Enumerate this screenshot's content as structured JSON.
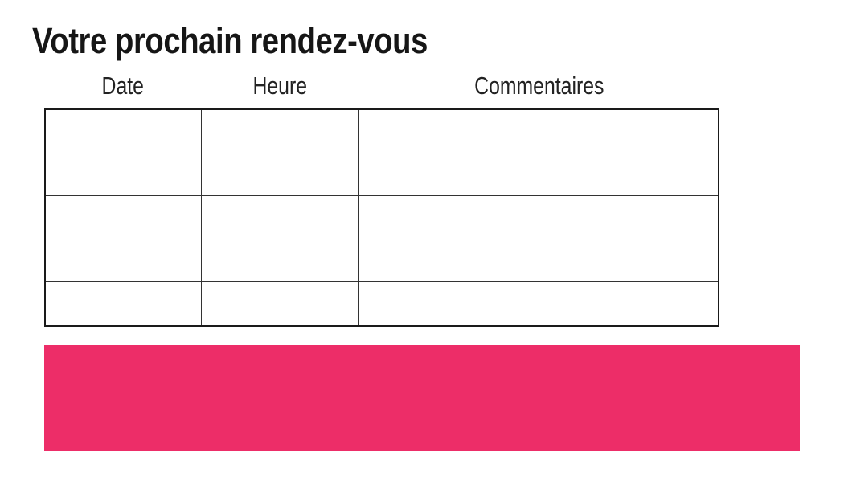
{
  "page": {
    "title": "Votre prochain rendez-vous",
    "background_color": "#ffffff"
  },
  "appointments_table": {
    "columns": [
      "Date",
      "Heure",
      "Commentaires"
    ],
    "rows": [
      [
        "",
        "",
        ""
      ],
      [
        "",
        "",
        ""
      ],
      [
        "",
        "",
        ""
      ],
      [
        "",
        "",
        ""
      ],
      [
        "",
        "",
        ""
      ]
    ]
  },
  "banner": {
    "color": "#ED2D68"
  }
}
